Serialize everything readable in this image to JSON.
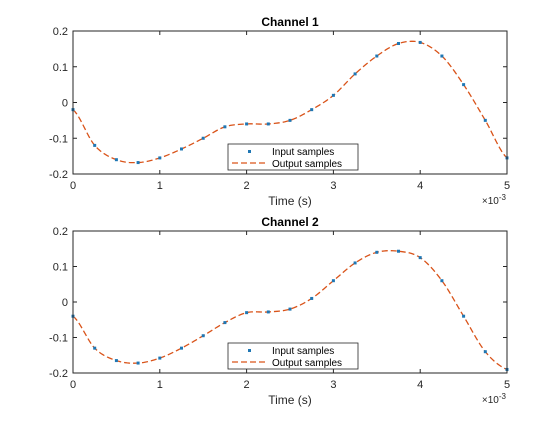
{
  "chart_data": [
    {
      "type": "line",
      "title": "Channel 1",
      "xlabel": "Time (s)",
      "ylabel": "",
      "x_exponent_label": "×10",
      "x_exponent": "-3",
      "xlim": [
        0,
        5
      ],
      "ylim": [
        -0.2,
        0.2
      ],
      "x_ticks": [
        "0",
        "1",
        "2",
        "3",
        "4",
        "5"
      ],
      "y_ticks": [
        "-0.2",
        "-0.1",
        "0",
        "0.1",
        "0.2"
      ],
      "legend_position": "bottom-center",
      "legend": [
        "Input samples",
        "Output samples"
      ],
      "x": [
        0,
        0.25,
        0.5,
        0.75,
        1.0,
        1.25,
        1.5,
        1.75,
        2.0,
        2.25,
        2.5,
        2.75,
        3.0,
        3.25,
        3.5,
        3.75,
        4.0,
        4.25,
        4.5,
        4.75,
        5.0
      ],
      "series": [
        {
          "name": "Input samples",
          "values": [
            -0.02,
            -0.12,
            -0.16,
            -0.168,
            -0.155,
            -0.13,
            -0.1,
            -0.068,
            -0.06,
            -0.06,
            -0.05,
            -0.02,
            0.02,
            0.08,
            0.13,
            0.165,
            0.168,
            0.13,
            0.05,
            -0.05,
            -0.155
          ]
        },
        {
          "name": "Output samples",
          "values": [
            -0.02,
            -0.12,
            -0.16,
            -0.168,
            -0.155,
            -0.13,
            -0.1,
            -0.068,
            -0.06,
            -0.06,
            -0.05,
            -0.02,
            0.02,
            0.08,
            0.13,
            0.165,
            0.168,
            0.13,
            0.05,
            -0.05,
            -0.155
          ]
        }
      ]
    },
    {
      "type": "line",
      "title": "Channel 2",
      "xlabel": "Time (s)",
      "ylabel": "",
      "x_exponent_label": "×10",
      "x_exponent": "-3",
      "xlim": [
        0,
        5
      ],
      "ylim": [
        -0.2,
        0.2
      ],
      "x_ticks": [
        "0",
        "1",
        "2",
        "3",
        "4",
        "5"
      ],
      "y_ticks": [
        "-0.2",
        "-0.1",
        "0",
        "0.1",
        "0.2"
      ],
      "legend_position": "bottom-center",
      "legend": [
        "Input samples",
        "Output samples"
      ],
      "x": [
        0,
        0.25,
        0.5,
        0.75,
        1.0,
        1.25,
        1.5,
        1.75,
        2.0,
        2.25,
        2.5,
        2.75,
        3.0,
        3.25,
        3.5,
        3.75,
        4.0,
        4.25,
        4.5,
        4.75,
        5.0
      ],
      "series": [
        {
          "name": "Input samples",
          "values": [
            -0.04,
            -0.13,
            -0.165,
            -0.172,
            -0.158,
            -0.13,
            -0.095,
            -0.058,
            -0.03,
            -0.028,
            -0.02,
            0.01,
            0.06,
            0.11,
            0.14,
            0.143,
            0.125,
            0.06,
            -0.04,
            -0.14,
            -0.19
          ]
        },
        {
          "name": "Output samples",
          "values": [
            -0.04,
            -0.13,
            -0.165,
            -0.172,
            -0.158,
            -0.13,
            -0.095,
            -0.058,
            -0.03,
            -0.028,
            -0.02,
            0.01,
            0.06,
            0.11,
            0.14,
            0.143,
            0.125,
            0.06,
            -0.04,
            -0.14,
            -0.19
          ]
        }
      ]
    }
  ],
  "colors": {
    "input": "#1f77b4",
    "output": "#d95319",
    "axis": "#262626",
    "background": "#ffffff"
  }
}
